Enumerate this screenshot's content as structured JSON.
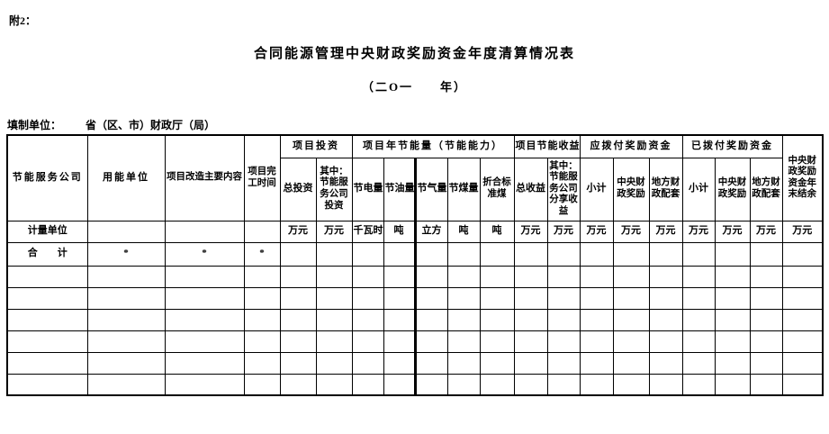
{
  "page": {
    "attachment_label": "附2：",
    "title": "合同能源管理中央财政奖励资金年度清算情况表",
    "year_subtitle": "（二O一　　年）",
    "prepared_by_label": "填制单位：",
    "prepared_by_value": "省（区、市）财政厅（局）"
  },
  "table": {
    "header": {
      "company": "节能服务公司",
      "energy_user": "用能单位",
      "renovation_content": "项目改造主要内容",
      "completion_time": "项目完工时间",
      "investment_group": "项目投资",
      "investment_total": "总投资",
      "investment_esco": "其中：节能服务公司投资",
      "savings_group": "项目年节能量（节能能力）",
      "electricity_saved": "节电量",
      "oil_saved": "节油量",
      "gas_saved": "节气量",
      "coal_saved": "节煤量",
      "standard_coal": "折合标准煤",
      "income_group": "项目节能收益",
      "income_total": "总收益",
      "income_esco_share": "其中：节能服务公司分享收益",
      "payable_group": "应拨付奖励资金",
      "payable_subtotal": "小计",
      "payable_central": "中央财政奖励",
      "payable_local": "地方财政配套",
      "paid_group": "已拨付奖励资金",
      "paid_subtotal": "小计",
      "paid_central": "中央财政奖励",
      "paid_local": "地方财政配套",
      "balance": "中央财政奖励资金年末结余"
    },
    "unit_row_label": "计量单位",
    "units": [
      "万元",
      "万元",
      "千瓦时",
      "吨",
      "立方",
      "吨",
      "吨",
      "万元",
      "万元",
      "万元",
      "万元",
      "万元",
      "万元",
      "万元",
      "万元",
      "万元"
    ],
    "total_row": {
      "label": "合　　计",
      "values": [
        "*",
        "*",
        "*"
      ]
    },
    "empty_row_count": 6,
    "column_count": 20
  }
}
